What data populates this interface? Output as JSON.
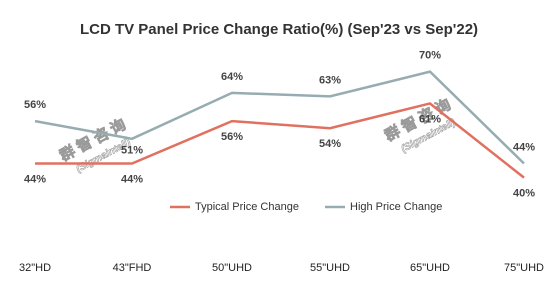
{
  "chart_data": {
    "type": "line",
    "title": "LCD TV Panel Price Change Ratio(%) (Sep'23 vs Sep'22)",
    "categories": [
      "32\"HD",
      "43\"FHD",
      "50\"UHD",
      "55\"UHD",
      "65\"UHD",
      "75\"UHD"
    ],
    "series": [
      {
        "name": "Typical Price Change",
        "color": "#e0705f",
        "values": [
          44,
          44,
          56,
          54,
          61,
          40
        ],
        "value_labels": [
          "44%",
          "44%",
          "56%",
          "54%",
          "61%",
          "40%"
        ]
      },
      {
        "name": "High Price Change",
        "color": "#97acb1",
        "values": [
          56,
          51,
          64,
          63,
          70,
          44
        ],
        "value_labels": [
          "56%",
          "51%",
          "64%",
          "63%",
          "70%",
          "44%"
        ]
      }
    ],
    "ylim": [
      30,
      75
    ],
    "watermark": [
      "群智咨询",
      "(Sigmaintell)"
    ]
  }
}
